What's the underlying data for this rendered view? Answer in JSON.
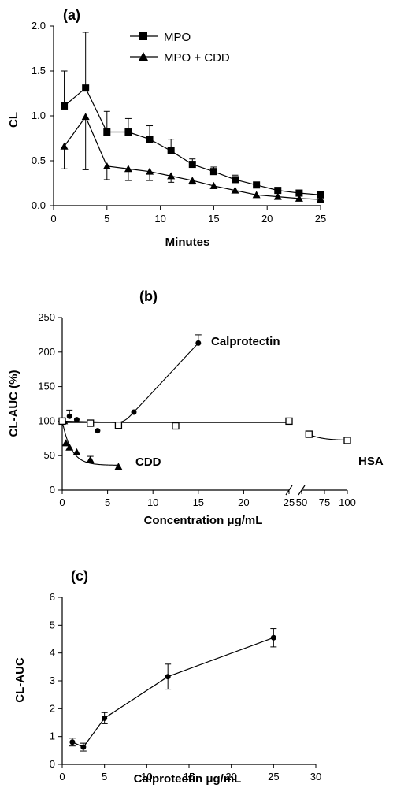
{
  "chart_data": [
    {
      "type": "line",
      "panel_label": "(a)",
      "xlabel": "Minutes",
      "ylabel": "CL",
      "xlim": [
        0,
        25
      ],
      "ylim": [
        0,
        2.0
      ],
      "x_ticks": [
        "0",
        "5",
        "10",
        "15",
        "20",
        "25"
      ],
      "y_ticks": [
        "0.0",
        "0.5",
        "1.0",
        "1.5",
        "2.0"
      ],
      "legend_position": "top-center",
      "grid": false,
      "series": [
        {
          "name": "MPO",
          "marker": "square",
          "x": [
            1,
            3,
            5,
            7,
            9,
            11,
            13,
            15,
            17,
            19,
            21,
            23,
            25
          ],
          "y": [
            1.11,
            1.31,
            0.82,
            0.82,
            0.74,
            0.61,
            0.46,
            0.38,
            0.29,
            0.23,
            0.17,
            0.14,
            0.12
          ],
          "err": [
            0.39,
            0.62,
            0.23,
            0.15,
            0.15,
            0.13,
            0.06,
            0.05,
            0.05,
            0.03,
            0.02,
            0.02,
            0.02
          ]
        },
        {
          "name": "MPO + CDD",
          "marker": "triangle",
          "x": [
            1,
            3,
            5,
            7,
            9,
            11,
            13,
            15,
            17,
            19,
            21,
            23,
            25
          ],
          "y": [
            0.66,
            0.99,
            0.44,
            0.41,
            0.38,
            0.33,
            0.28,
            0.22,
            0.17,
            0.12,
            0.1,
            0.08,
            0.07
          ],
          "err_lo": [
            0.25,
            0.59,
            0.15,
            0.13,
            0.1,
            0.07,
            0.04,
            0.03,
            0.02,
            0.02,
            0.02,
            0.02,
            0.01
          ]
        }
      ]
    },
    {
      "type": "line",
      "panel_label": "(b)",
      "xlabel": "Concentration μg/mL",
      "ylabel": "CL-AUC (%)",
      "ylim": [
        0,
        250
      ],
      "x_ticks": [
        "0",
        "5",
        "10",
        "15",
        "20",
        "25",
        "50",
        "75",
        "100"
      ],
      "y_ticks": [
        "0",
        "50",
        "100",
        "150",
        "200",
        "250"
      ],
      "x_axis_break": [
        25,
        50
      ],
      "grid": false,
      "series": [
        {
          "name": "Calprotectin",
          "marker": "circle",
          "x": [
            0,
            0.8,
            1.6,
            3.9,
            7.9,
            15.0
          ],
          "y": [
            101,
            107,
            102,
            86,
            113,
            213
          ],
          "err": [
            0,
            9,
            0,
            0,
            0,
            12
          ]
        },
        {
          "name": "CDD",
          "marker": "triangle",
          "x": [
            0.2,
            0.4,
            0.8,
            1.6,
            3.1,
            6.2
          ],
          "y": [
            100,
            68,
            62,
            55,
            44,
            34
          ],
          "err": [
            0,
            0,
            0,
            0,
            5,
            0
          ]
        },
        {
          "name": "HSA",
          "marker": "open-square",
          "x": [
            0,
            3.1,
            6.2,
            12.5,
            25,
            58,
            100
          ],
          "y": [
            100,
            97,
            94,
            93,
            100,
            81,
            72
          ],
          "err": [
            0,
            0,
            0,
            0,
            0,
            0,
            0
          ]
        }
      ],
      "reference_line": 98
    },
    {
      "type": "line",
      "panel_label": "(c)",
      "xlabel": "Calprotectin μg/mL",
      "ylabel": "CL-AUC",
      "xlim": [
        0,
        30
      ],
      "ylim": [
        0,
        6
      ],
      "x_ticks": [
        "0",
        "5",
        "10",
        "15",
        "20",
        "25",
        "30"
      ],
      "y_ticks": [
        "0",
        "1",
        "2",
        "3",
        "4",
        "5",
        "6"
      ],
      "grid": false,
      "series": [
        {
          "name": "Calprotectin",
          "marker": "circle",
          "x": [
            1.2,
            2.5,
            5,
            12.5,
            25
          ],
          "y": [
            0.8,
            0.62,
            1.66,
            3.15,
            4.55
          ],
          "err": [
            0.14,
            0.14,
            0.2,
            0.45,
            0.33
          ]
        }
      ]
    }
  ]
}
